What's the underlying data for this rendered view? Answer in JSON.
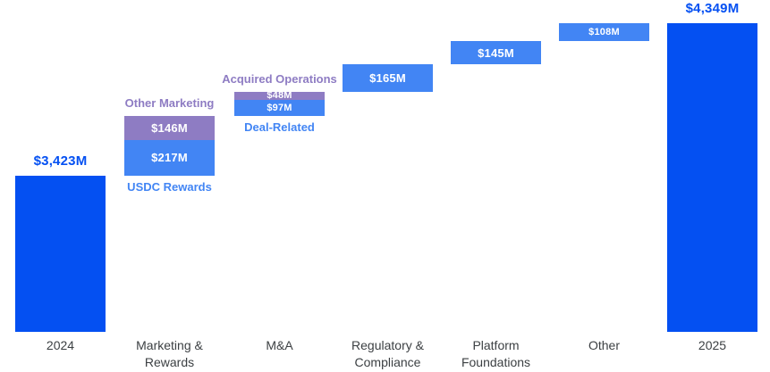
{
  "chart_data": {
    "type": "waterfall",
    "description": "Expense bridge from 2024 to 2025 in $M",
    "layout": {
      "grid": false,
      "axis_line": false,
      "legend": false,
      "background": "#ffffff"
    },
    "colors": {
      "primary_blue": "#0450f2",
      "light_blue": "#4285f4",
      "purple": "#8e7cc3",
      "axis_text": "#3c4043",
      "bar_value_text": "#ffffff"
    },
    "columns": [
      {
        "key": "2024",
        "role": "total",
        "axis_label_lines": [
          "2024"
        ],
        "value": 3423,
        "label": "$3,423M"
      },
      {
        "key": "marketing-rewards",
        "role": "delta",
        "axis_label_lines": [
          "Marketing &",
          "Rewards"
        ],
        "segments": [
          {
            "name": "USDC Rewards",
            "name_position": "below",
            "value": 217,
            "label": "$217M",
            "color": "light_blue"
          },
          {
            "name": "Other Marketing",
            "name_position": "above",
            "value": 146,
            "label": "$146M",
            "color": "purple"
          }
        ]
      },
      {
        "key": "ma",
        "role": "delta",
        "axis_label_lines": [
          "M&A"
        ],
        "segments": [
          {
            "name": "Deal-Related",
            "name_position": "below",
            "value": 97,
            "label": "$97M",
            "color": "light_blue"
          },
          {
            "name": "Acquired Operations",
            "name_position": "above",
            "value": 48,
            "label": "$48M",
            "color": "purple"
          }
        ]
      },
      {
        "key": "regulatory-compliance",
        "role": "delta",
        "axis_label_lines": [
          "Regulatory &",
          "Compliance"
        ],
        "segments": [
          {
            "value": 165,
            "label": "$165M",
            "color": "light_blue"
          }
        ]
      },
      {
        "key": "platform-foundations",
        "role": "delta",
        "axis_label_lines": [
          "Platform",
          "Foundations"
        ],
        "segments": [
          {
            "value": 145,
            "label": "$145M",
            "color": "light_blue"
          }
        ]
      },
      {
        "key": "other",
        "role": "delta",
        "axis_label_lines": [
          "Other"
        ],
        "segments": [
          {
            "value": 108,
            "label": "$108M",
            "color": "light_blue"
          }
        ]
      },
      {
        "key": "2025",
        "role": "total",
        "axis_label_lines": [
          "2025"
        ],
        "value": 4349,
        "label": "$4,349M"
      }
    ]
  }
}
